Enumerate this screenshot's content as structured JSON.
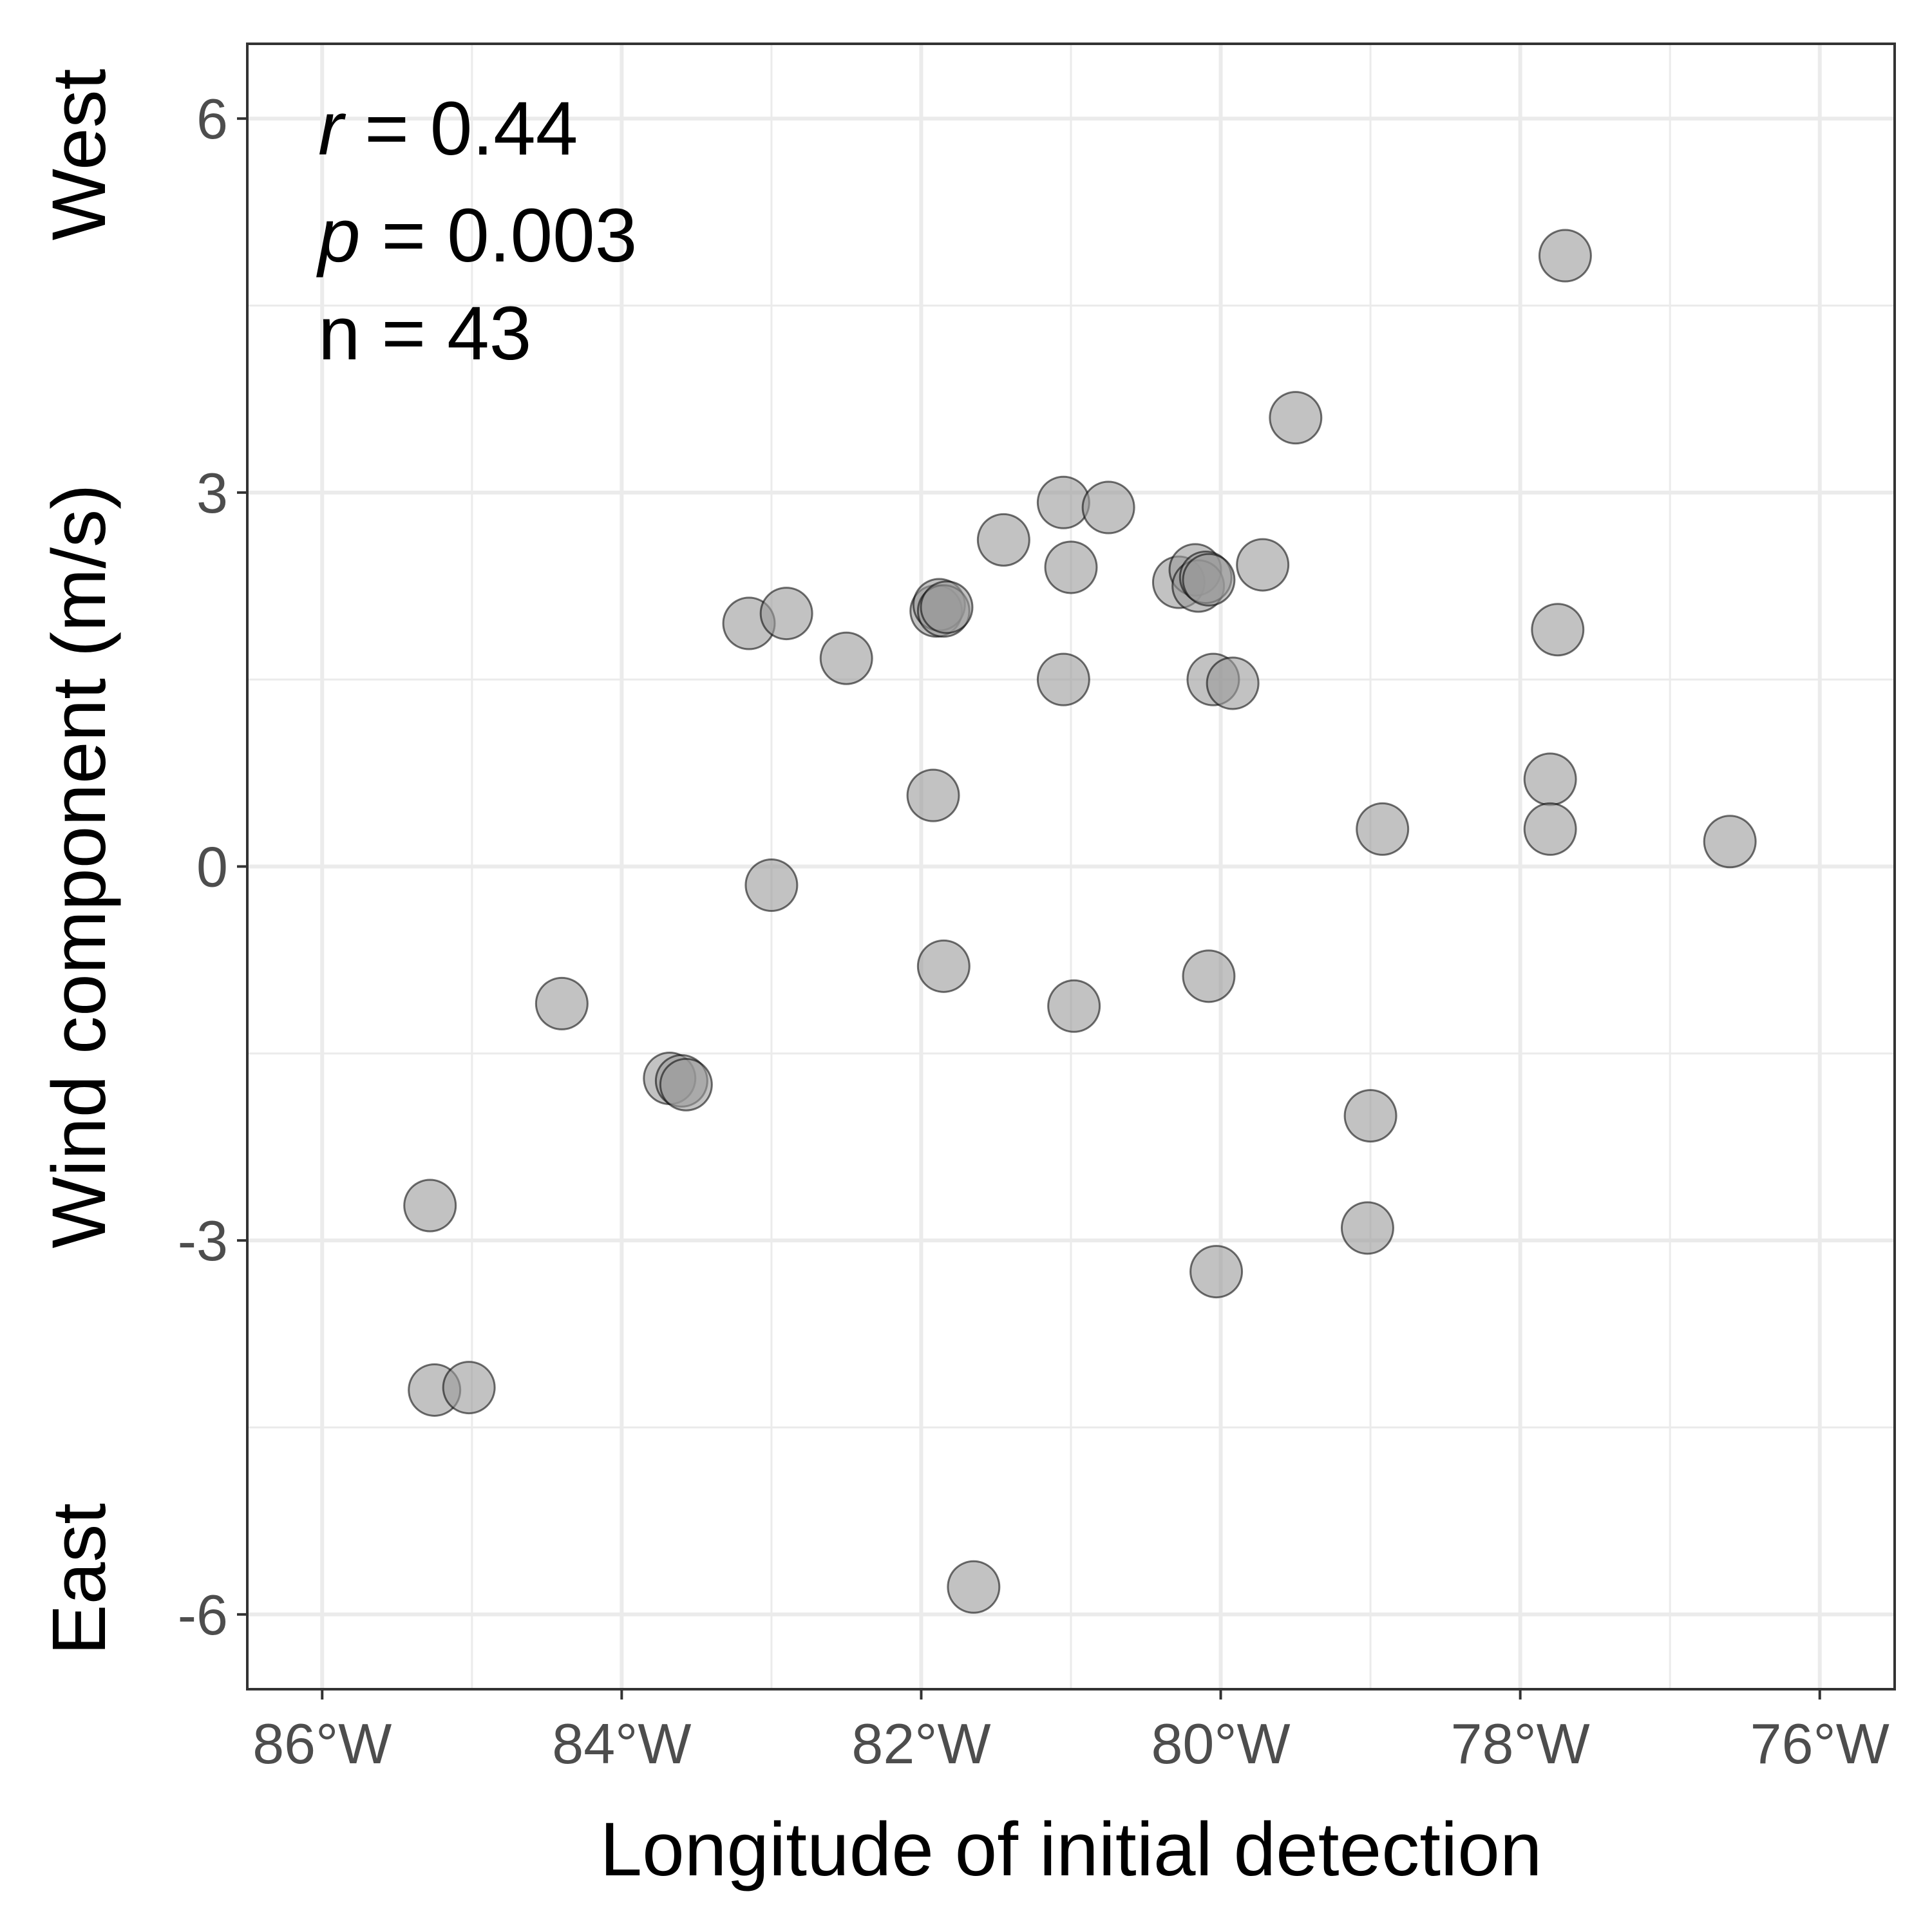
{
  "chart_data": {
    "type": "scatter",
    "xlabel": "Longitude of initial detection",
    "ylabel": "Wind component (m/s)",
    "ylabel_top": "West",
    "ylabel_bottom": "East",
    "xlim": [
      -86.5,
      -75.5
    ],
    "ylim": [
      -6.6,
      6.6
    ],
    "x_ticks": [
      -86,
      -84,
      -82,
      -80,
      -78,
      -76
    ],
    "x_tick_labels": [
      "86°W",
      "84°W",
      "82°W",
      "80°W",
      "78°W",
      "76°W"
    ],
    "y_ticks": [
      -6,
      -3,
      0,
      3,
      6
    ],
    "y_tick_labels": [
      "-6",
      "-3",
      "0",
      "3",
      "6"
    ],
    "grid": true,
    "annotations": {
      "r_symbol": "r",
      "r_value": " = 0.44",
      "p_symbol": "p",
      "p_value": " = 0.003",
      "n_text": "n = 43"
    },
    "point_color": "#999999",
    "points": [
      {
        "x": -77.7,
        "y": 4.9
      },
      {
        "x": -79.5,
        "y": 3.6
      },
      {
        "x": -81.05,
        "y": 2.92
      },
      {
        "x": -80.75,
        "y": 2.88
      },
      {
        "x": -81.45,
        "y": 2.62
      },
      {
        "x": -81.0,
        "y": 2.4
      },
      {
        "x": -80.28,
        "y": 2.28
      },
      {
        "x": -80.17,
        "y": 2.38
      },
      {
        "x": -80.15,
        "y": 2.25
      },
      {
        "x": -80.1,
        "y": 2.32
      },
      {
        "x": -80.08,
        "y": 2.3
      },
      {
        "x": -79.72,
        "y": 2.42
      },
      {
        "x": -81.9,
        "y": 2.05
      },
      {
        "x": -81.88,
        "y": 2.1
      },
      {
        "x": -81.85,
        "y": 2.05
      },
      {
        "x": -81.83,
        "y": 2.08
      },
      {
        "x": -83.15,
        "y": 1.95
      },
      {
        "x": -82.9,
        "y": 2.03
      },
      {
        "x": -82.5,
        "y": 1.67
      },
      {
        "x": -77.75,
        "y": 1.9
      },
      {
        "x": -81.05,
        "y": 1.5
      },
      {
        "x": -80.05,
        "y": 1.5
      },
      {
        "x": -79.92,
        "y": 1.47
      },
      {
        "x": -77.8,
        "y": 0.7
      },
      {
        "x": -81.92,
        "y": 0.57
      },
      {
        "x": -78.92,
        "y": 0.3
      },
      {
        "x": -77.8,
        "y": 0.3
      },
      {
        "x": -76.6,
        "y": 0.2
      },
      {
        "x": -83.0,
        "y": -0.15
      },
      {
        "x": -81.85,
        "y": -0.8
      },
      {
        "x": -80.08,
        "y": -0.88
      },
      {
        "x": -84.4,
        "y": -1.1
      },
      {
        "x": -80.98,
        "y": -1.12
      },
      {
        "x": -83.68,
        "y": -1.7
      },
      {
        "x": -83.6,
        "y": -1.72
      },
      {
        "x": -83.57,
        "y": -1.75
      },
      {
        "x": -79.0,
        "y": -2.0
      },
      {
        "x": -85.28,
        "y": -2.72
      },
      {
        "x": -79.02,
        "y": -2.9
      },
      {
        "x": -80.03,
        "y": -3.25
      },
      {
        "x": -85.25,
        "y": -4.2
      },
      {
        "x": -85.02,
        "y": -4.18
      },
      {
        "x": -81.65,
        "y": -5.78
      }
    ]
  }
}
